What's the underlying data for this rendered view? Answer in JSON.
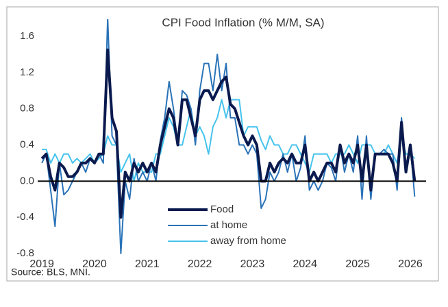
{
  "chart_data": {
    "type": "line",
    "title": "CPI Food Inflation (% M/M, SA)",
    "source": "Source: BLS, MNI.",
    "x": [
      2019,
      2019.083,
      2019.167,
      2019.25,
      2019.333,
      2019.417,
      2019.5,
      2019.583,
      2019.667,
      2019.75,
      2019.833,
      2019.917,
      2020,
      2020.083,
      2020.167,
      2020.25,
      2020.333,
      2020.417,
      2020.5,
      2020.583,
      2020.667,
      2020.75,
      2020.833,
      2020.917,
      2021,
      2021.083,
      2021.167,
      2021.25,
      2021.333,
      2021.417,
      2021.5,
      2021.583,
      2021.667,
      2021.75,
      2021.833,
      2021.917,
      2022,
      2022.083,
      2022.167,
      2022.25,
      2022.333,
      2022.417,
      2022.5,
      2022.583,
      2022.667,
      2022.75,
      2022.833,
      2022.917,
      2023,
      2023.083,
      2023.167,
      2023.25,
      2023.333,
      2023.417,
      2023.5,
      2023.583,
      2023.667,
      2023.75,
      2023.833,
      2023.917,
      2024,
      2024.083,
      2024.167,
      2024.25,
      2024.333,
      2024.417,
      2024.5,
      2024.583,
      2024.667,
      2024.75,
      2024.833,
      2024.917,
      2025,
      2025.083,
      2025.167,
      2025.25,
      2025.333,
      2025.417,
      2025.5,
      2025.583,
      2025.667,
      2025.75,
      2025.833,
      2025.917,
      2026,
      2026.083
    ],
    "series": [
      {
        "name": "Food",
        "color": "#0b1a4e",
        "width": 4,
        "values": [
          0.25,
          0.3,
          0.05,
          -0.1,
          0.2,
          0.15,
          0.05,
          0.05,
          0.1,
          0.2,
          0.2,
          0.25,
          0.2,
          0.3,
          0.3,
          1.45,
          0.7,
          0.55,
          -0.4,
          0.1,
          0.0,
          0.2,
          0.1,
          0.2,
          0.1,
          0.2,
          0.1,
          0.4,
          0.6,
          0.8,
          0.7,
          0.4,
          0.9,
          0.9,
          0.7,
          0.5,
          0.9,
          1.0,
          1.0,
          0.9,
          1.0,
          1.1,
          1.15,
          0.85,
          0.8,
          0.65,
          0.5,
          0.4,
          0.5,
          0.4,
          0.0,
          0.0,
          0.2,
          0.1,
          0.2,
          0.25,
          0.2,
          0.3,
          0.2,
          0.2,
          0.4,
          0.0,
          0.1,
          0.0,
          0.1,
          0.2,
          0.2,
          0.1,
          0.4,
          0.2,
          0.3,
          0.2,
          0.4,
          0.0,
          0.4,
          -0.1,
          0.3,
          0.3,
          0.3,
          0.3,
          0.2,
          0.0,
          0.65,
          0.1,
          0.4,
          0.0
        ]
      },
      {
        "name": "at home",
        "color": "#2a73b8",
        "width": 2,
        "values": [
          0.2,
          0.3,
          -0.1,
          -0.5,
          0.2,
          -0.15,
          -0.1,
          0.0,
          0.1,
          0.2,
          0.1,
          0.25,
          0.2,
          0.3,
          0.2,
          1.8,
          0.5,
          0.4,
          -0.8,
          0.0,
          -0.2,
          0.25,
          0.0,
          0.1,
          0.0,
          0.2,
          0.0,
          0.45,
          0.7,
          1.1,
          0.8,
          0.4,
          1.0,
          0.95,
          0.8,
          0.4,
          1.0,
          1.3,
          1.3,
          1.0,
          1.4,
          1.0,
          1.3,
          0.7,
          0.7,
          0.4,
          0.4,
          0.3,
          0.4,
          0.3,
          -0.3,
          -0.2,
          0.1,
          0.0,
          0.1,
          0.3,
          0.1,
          0.3,
          0.0,
          0.15,
          0.5,
          -0.1,
          0.0,
          -0.1,
          0.0,
          0.2,
          0.15,
          0.0,
          0.4,
          0.1,
          0.3,
          0.1,
          0.5,
          -0.2,
          0.5,
          -0.2,
          0.3,
          0.3,
          0.35,
          0.3,
          0.3,
          -0.1,
          0.7,
          0.1,
          0.4,
          -0.17
        ]
      },
      {
        "name": "away from home",
        "color": "#45c3ec",
        "width": 2,
        "values": [
          0.35,
          0.35,
          0.2,
          0.3,
          0.2,
          0.3,
          0.3,
          0.2,
          0.25,
          0.2,
          0.25,
          0.3,
          0.2,
          0.25,
          0.3,
          0.5,
          0.4,
          0.4,
          0.1,
          0.2,
          0.3,
          0.0,
          0.2,
          0.1,
          0.1,
          0.1,
          0.3,
          0.3,
          0.5,
          0.7,
          0.6,
          0.4,
          0.4,
          0.6,
          0.8,
          0.5,
          0.6,
          0.5,
          0.3,
          0.6,
          0.7,
          0.9,
          0.7,
          0.9,
          0.9,
          0.9,
          0.5,
          0.6,
          0.6,
          0.6,
          0.45,
          0.35,
          0.5,
          0.4,
          0.4,
          0.3,
          0.3,
          0.4,
          0.4,
          0.3,
          0.2,
          0.1,
          0.3,
          0.3,
          0.3,
          0.3,
          0.2,
          0.3,
          0.3,
          0.3,
          0.4,
          0.3,
          0.2,
          0.4,
          0.4,
          0.4,
          0.3,
          0.3,
          0.3,
          0.4,
          0.3,
          0.2,
          0.5,
          0.3,
          0.3,
          0.25
        ]
      }
    ],
    "xlim": [
      2018.92,
      2026.3
    ],
    "xticks": [
      2019,
      2020,
      2021,
      2022,
      2023,
      2024,
      2025,
      2026
    ],
    "ylim": [
      -0.8,
      1.6
    ],
    "yticks": [
      -0.8,
      -0.4,
      {
        "value": 0,
        "label": "0.0"
      },
      0.4,
      0.8,
      1.2,
      1.6
    ],
    "grid": false,
    "zero_line": true,
    "legend": "bottom-center"
  }
}
